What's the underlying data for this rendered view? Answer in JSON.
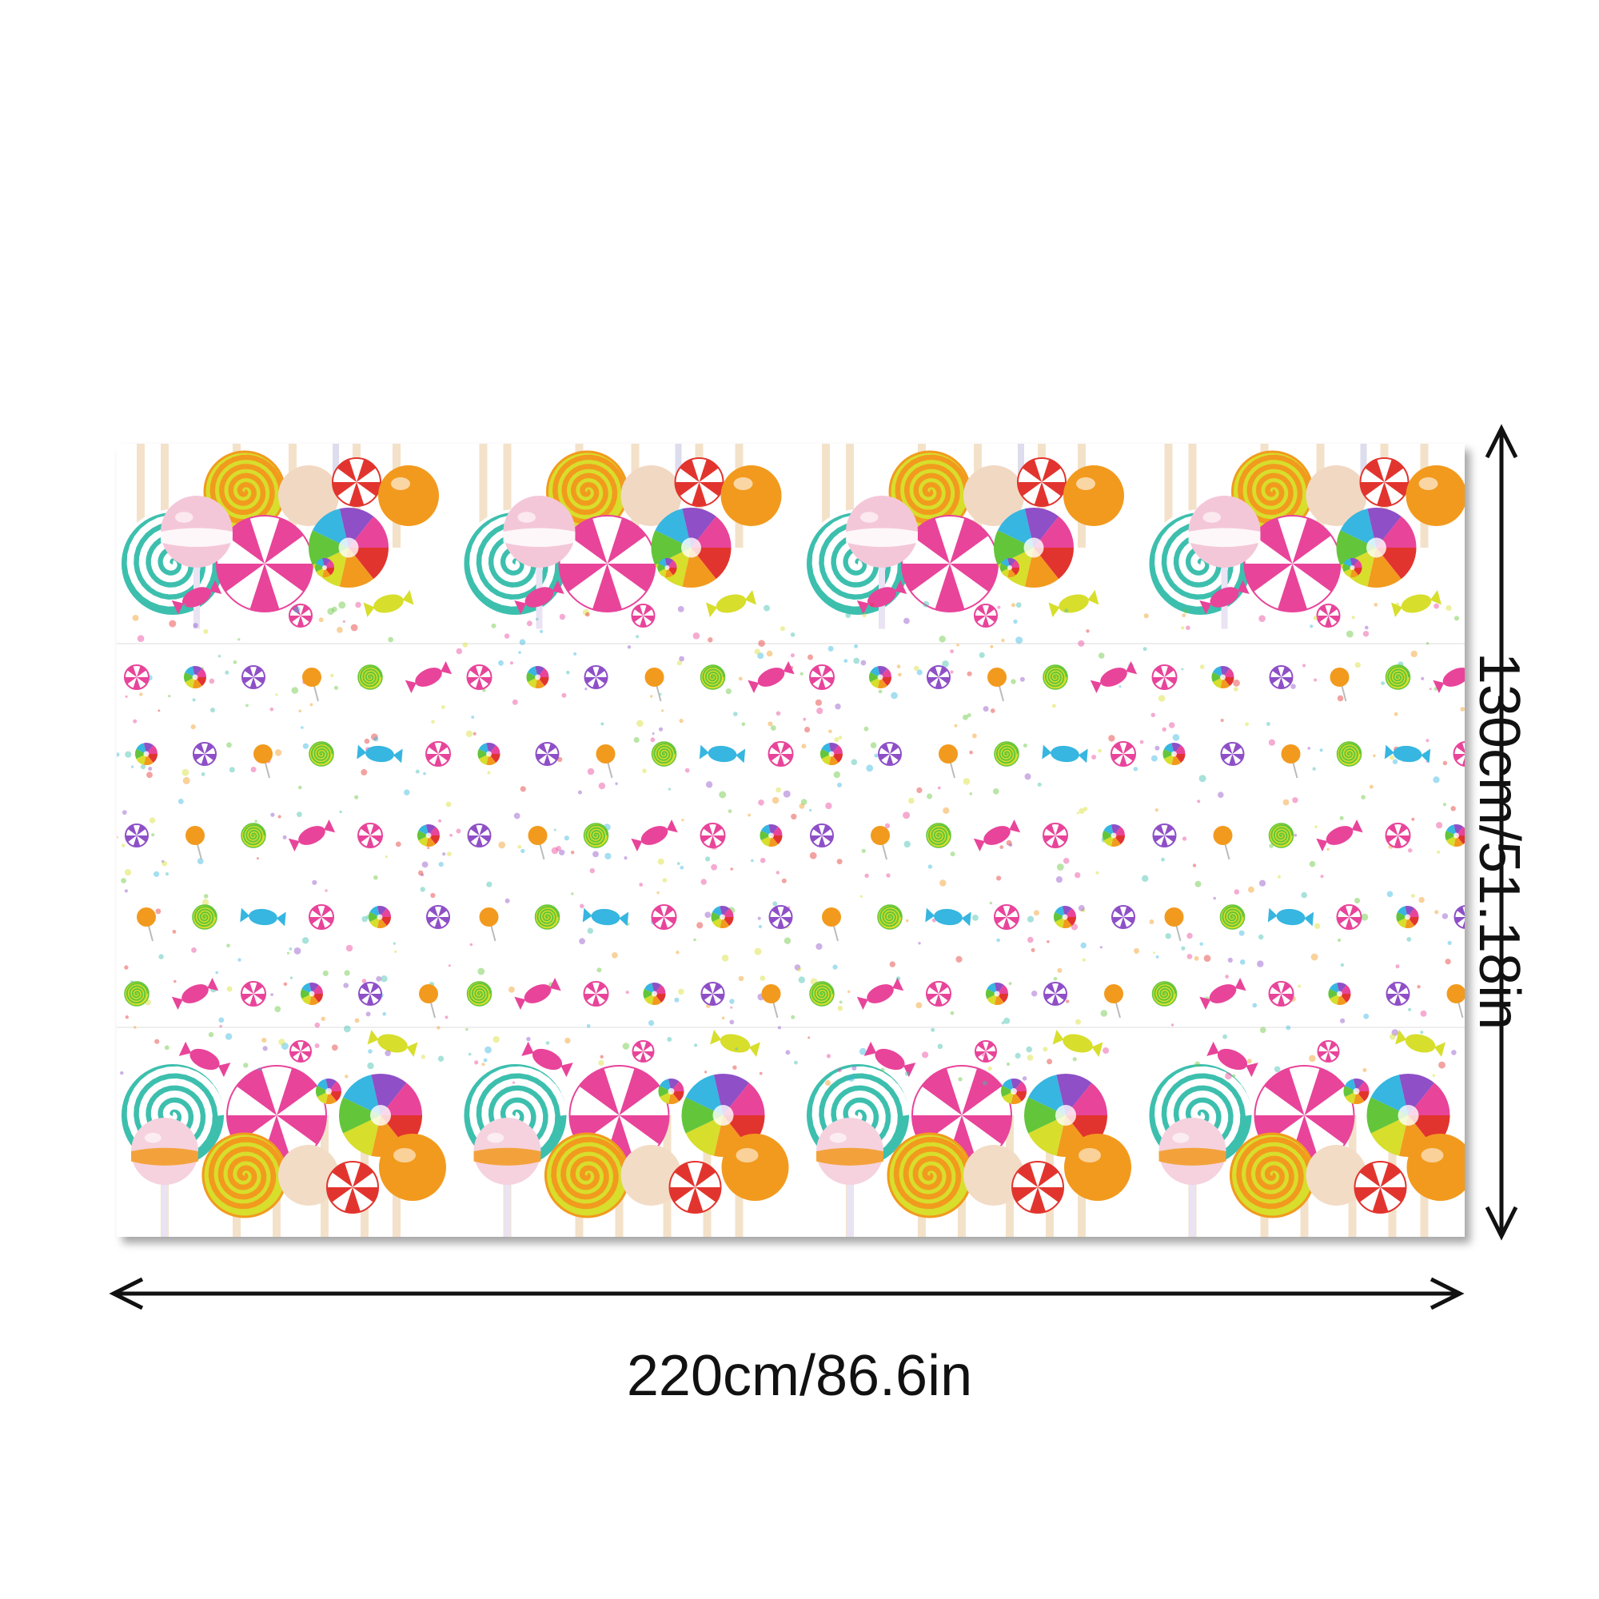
{
  "product": {
    "name": "candy-tablecloth",
    "colors": {
      "teal": "#3dbfae",
      "pink": "#e8449a",
      "yellow": "#d7de2c",
      "orange": "#f29a1e",
      "red": "#e2342e",
      "purple": "#8e4fc7",
      "blue": "#36b6e0",
      "green": "#63c53a",
      "cream": "#f3e2c9"
    }
  },
  "dimensions": {
    "width_label": "220cm/86.6in",
    "height_label": "130cm/51.18in"
  },
  "icons": [
    "double-arrow-horizontal-icon",
    "double-arrow-vertical-icon"
  ]
}
